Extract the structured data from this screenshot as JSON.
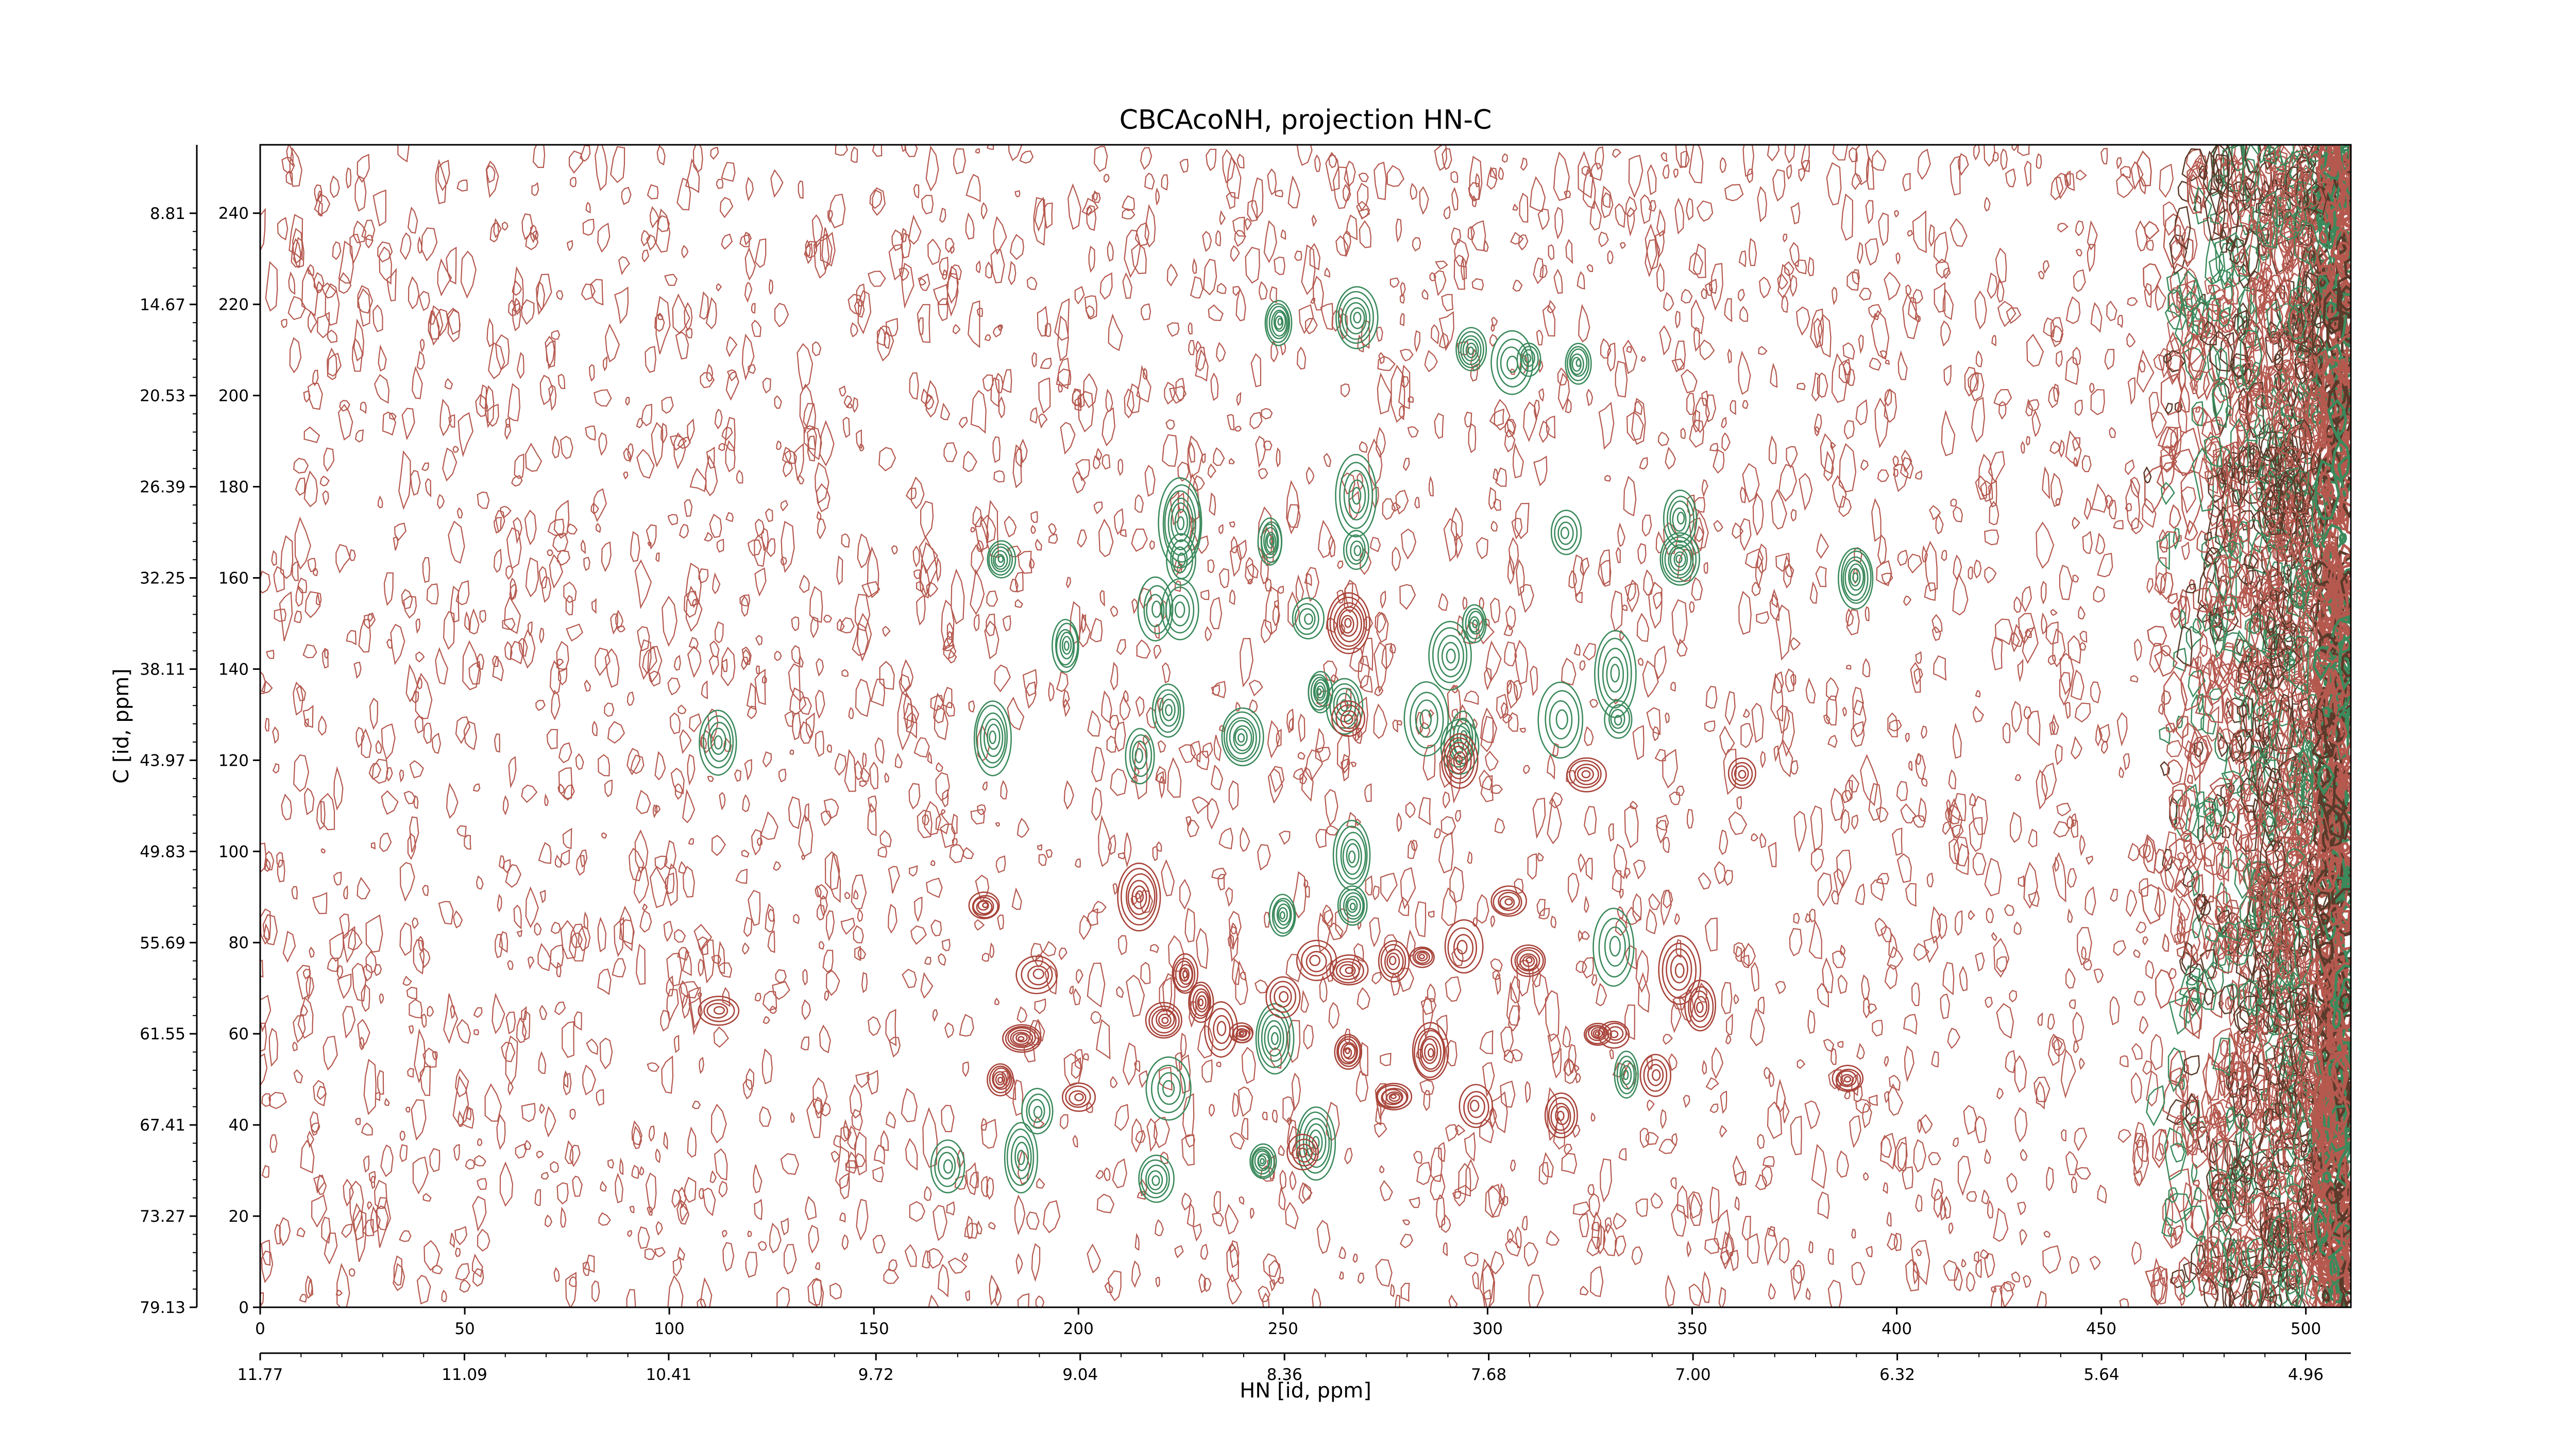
{
  "chart_data": {
    "type": "contour",
    "title": "CBCAcoNH, projection HN-C",
    "xlabel": "HN [id, ppm]",
    "ylabel": "C [id, ppm]",
    "xlim": [
      0,
      511
    ],
    "ylim": [
      0,
      255
    ],
    "xticks": [
      0,
      50,
      100,
      150,
      200,
      250,
      300,
      350,
      400,
      450,
      500
    ],
    "yticks": [
      0,
      20,
      40,
      60,
      80,
      100,
      120,
      140,
      160,
      180,
      200,
      220,
      240
    ],
    "x2lim": [
      11.77,
      4.81
    ],
    "x2ticks": [
      11.77,
      11.09,
      10.41,
      9.72,
      9.04,
      8.36,
      7.68,
      {
        "value": 7.0,
        "label": "7.00"
      },
      6.32,
      5.64,
      4.96
    ],
    "y2lim": [
      79.13,
      4.41
    ],
    "y2ticks": [
      79.13,
      73.27,
      67.41,
      61.55,
      55.69,
      49.83,
      43.97,
      38.11,
      32.25,
      26.39,
      20.53,
      14.67,
      8.81
    ],
    "series": [
      {
        "color": "#3b8a5c",
        "x": [
          249,
          268,
          296,
          306,
          310,
          322,
          225,
          181,
          225,
          247,
          268,
          268,
          347,
          347,
          319,
          390,
          219,
          225,
          256,
          297,
          291,
          197,
          331,
          179,
          215,
          240,
          259,
          265,
          222,
          285,
          294,
          318,
          332,
          112,
          267,
          267,
          250,
          331,
          222,
          190,
          186,
          168,
          245,
          258,
          219,
          334,
          248,
          293
        ],
        "values": [
          216,
          217,
          210,
          207,
          208,
          207,
          172,
          164,
          164,
          168,
          178,
          166,
          173,
          164,
          170,
          160,
          153,
          153,
          151,
          150,
          143,
          145,
          139,
          125,
          121,
          125,
          135,
          132,
          131,
          129,
          125,
          129,
          129,
          124,
          99,
          88,
          86,
          79,
          48,
          43,
          33,
          31,
          32,
          36,
          28,
          51,
          59,
          123
        ]
      },
      {
        "color": "#a8443a",
        "x": [
          266,
          266,
          266,
          266,
          293,
          324,
          362,
          177,
          190,
          215,
          226,
          235,
          240,
          221,
          258,
          277,
          284,
          294,
          305,
          310,
          327,
          331,
          347,
          352,
          341,
          286,
          277,
          186,
          181,
          200,
          112,
          388,
          318,
          255,
          297,
          250,
          230
        ],
        "values": [
          150,
          129,
          74,
          56,
          120,
          117,
          117,
          88,
          73,
          90,
          73,
          61,
          60,
          63,
          76,
          76,
          77,
          79,
          89,
          76,
          60,
          60,
          74,
          66,
          51,
          56,
          46,
          59,
          50,
          46,
          65,
          50,
          42,
          34,
          44,
          68,
          67
        ]
      }
    ]
  }
}
